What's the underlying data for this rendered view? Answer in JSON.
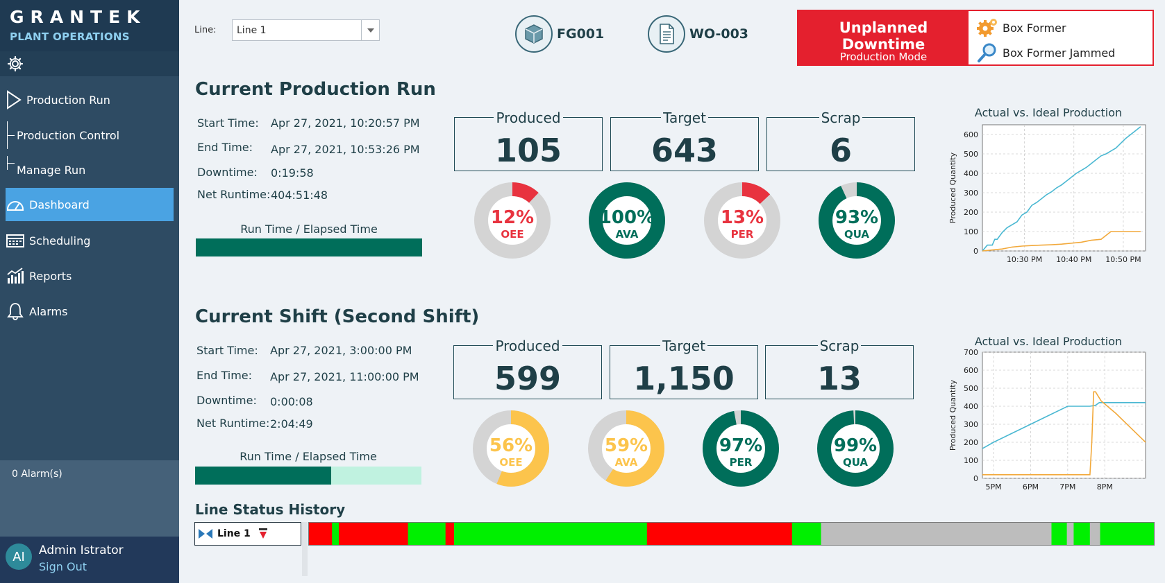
{
  "app": {
    "brand": "GRANTEK",
    "subtitle": "PLANT OPERATIONS"
  },
  "sidebar": {
    "items": [
      {
        "label": "Production Run",
        "icon": "play-icon"
      },
      {
        "label": "Production Control",
        "icon": ""
      },
      {
        "label": "Manage Run",
        "icon": ""
      },
      {
        "label": "Dashboard",
        "icon": "gauge-icon"
      },
      {
        "label": "Scheduling",
        "icon": "calendar-icon"
      },
      {
        "label": "Reports",
        "icon": "chart-icon"
      },
      {
        "label": "Alarms",
        "icon": "bell-icon"
      }
    ],
    "alarms": "0 Alarm(s)",
    "user": {
      "initials": "AI",
      "name": "Admin Istrator",
      "signout": "Sign Out"
    }
  },
  "header": {
    "line_label": "Line:",
    "line_value": "Line 1",
    "product": "FG001",
    "work_order": "WO-003",
    "status": {
      "title": "Unplanned Downtime",
      "mode": "Production Mode",
      "machine": "Box Former",
      "reason": "Box Former Jammed"
    }
  },
  "run": {
    "title": "Current Production Run",
    "labels": {
      "start": "Start Time:",
      "end": "End Time:",
      "downtime": "Downtime:",
      "net": "Net Runtime:"
    },
    "start": "Apr 27, 2021, 10:20:57 PM",
    "end": "Apr 27, 2021, 10:53:26 PM",
    "downtime": "0:19:58",
    "net": "404:51:48",
    "rt_label": "Run Time / Elapsed Time",
    "rt_fraction": 1.0,
    "boxes": [
      {
        "label": "Produced",
        "value": "105"
      },
      {
        "label": "Target",
        "value": "643"
      },
      {
        "label": "Scrap",
        "value": "6"
      }
    ],
    "kpis": [
      {
        "pct": "12%",
        "name": "OEE",
        "value": 12,
        "color": "#e8333f"
      },
      {
        "pct": "100%",
        "name": "AVA",
        "value": 100,
        "color": "#006e5a"
      },
      {
        "pct": "13%",
        "name": "PER",
        "value": 13,
        "color": "#e8333f"
      },
      {
        "pct": "93%",
        "name": "QUA",
        "value": 93,
        "color": "#006e5a"
      }
    ]
  },
  "shift": {
    "title": "Current Shift  (Second Shift)",
    "labels": {
      "start": "Start Time:",
      "end": "End Time:",
      "downtime": "Downtime:",
      "net": "Net Runtime:"
    },
    "start": "Apr 27, 2021, 3:00:00 PM",
    "end": "Apr 27, 2021, 11:00:00 PM",
    "downtime": "0:00:08",
    "net": "2:04:49",
    "rt_label": "Run Time / Elapsed Time",
    "rt_fraction": 0.6,
    "boxes": [
      {
        "label": "Produced",
        "value": "599"
      },
      {
        "label": "Target",
        "value": "1,150"
      },
      {
        "label": "Scrap",
        "value": "13"
      }
    ],
    "kpis": [
      {
        "pct": "56%",
        "name": "OEE",
        "value": 56,
        "color": "#fcc44c"
      },
      {
        "pct": "59%",
        "name": "AVA",
        "value": 59,
        "color": "#fcc44c"
      },
      {
        "pct": "97%",
        "name": "PER",
        "value": 97,
        "color": "#006e5a"
      },
      {
        "pct": "99%",
        "name": "QUA",
        "value": 99,
        "color": "#006e5a"
      }
    ]
  },
  "chart_data": [
    {
      "type": "line",
      "title": "Actual vs. Ideal Production",
      "ylabel": "Produced Quantity",
      "xlabel": "",
      "xlim": [
        0,
        33
      ],
      "ylim": [
        0,
        650
      ],
      "yticks": [
        0,
        100,
        200,
        300,
        400,
        500,
        600
      ],
      "xticks": [
        {
          "x": 8.5,
          "label": "10:30 PM"
        },
        {
          "x": 18.5,
          "label": "10:40 PM"
        },
        {
          "x": 28.5,
          "label": "10:50 PM"
        }
      ],
      "series": [
        {
          "color": "#4ab8d2",
          "x": [
            0,
            1,
            2,
            2.5,
            3,
            4,
            5,
            6,
            7,
            8,
            9,
            10,
            11,
            12,
            13,
            14,
            15,
            16,
            17,
            18,
            19,
            20,
            21,
            22,
            23,
            24,
            25,
            26,
            27,
            28,
            29,
            30,
            31,
            32
          ],
          "y": [
            0,
            30,
            30,
            60,
            60,
            95,
            120,
            135,
            150,
            185,
            200,
            235,
            250,
            270,
            290,
            305,
            325,
            340,
            360,
            380,
            400,
            415,
            430,
            450,
            470,
            490,
            500,
            515,
            530,
            555,
            580,
            600,
            620,
            640
          ]
        },
        {
          "color": "#f2a93b",
          "x": [
            0,
            2,
            4,
            6,
            8,
            10,
            12,
            14,
            16,
            18,
            20,
            22,
            24,
            25,
            26,
            28,
            30,
            32
          ],
          "y": [
            0,
            5,
            10,
            20,
            25,
            28,
            30,
            32,
            35,
            40,
            45,
            55,
            60,
            80,
            100,
            100,
            100,
            100
          ]
        }
      ]
    },
    {
      "type": "line",
      "title": "Actual vs. Ideal Production",
      "ylabel": "Produced Quantity",
      "xlabel": "",
      "xlim": [
        16.7,
        21.1
      ],
      "ylim": [
        0,
        700
      ],
      "yticks": [
        0,
        100,
        200,
        300,
        400,
        500,
        600,
        700
      ],
      "xticks": [
        {
          "x": 17,
          "label": "5PM"
        },
        {
          "x": 18,
          "label": "6PM"
        },
        {
          "x": 19,
          "label": "7PM"
        },
        {
          "x": 20,
          "label": "8PM"
        }
      ],
      "series": [
        {
          "color": "#4ab8d2",
          "x": [
            16.7,
            17,
            17.5,
            18,
            18.5,
            19,
            19.6,
            19.75,
            19.85,
            20.0,
            20.5,
            21.0,
            21.1
          ],
          "y": [
            165,
            200,
            250,
            300,
            350,
            400,
            400,
            405,
            420,
            420,
            420,
            420,
            420
          ]
        },
        {
          "color": "#f2a93b",
          "x": [
            16.7,
            17,
            18,
            19,
            19.5,
            19.6,
            19.65,
            19.7,
            19.75,
            19.9,
            20.3,
            20.7,
            21.1
          ],
          "y": [
            20,
            20,
            20,
            20,
            20,
            20,
            200,
            480,
            480,
            430,
            360,
            280,
            200
          ]
        }
      ]
    }
  ],
  "line_status": {
    "title": "Line Status History",
    "line_label": "Line 1",
    "colors": {
      "down": "#ff0000",
      "running": "#00f000",
      "idle": "#bdbdbd",
      "marker": "#b04040"
    },
    "segments": [
      {
        "state": "down",
        "w": 2.7
      },
      {
        "state": "running",
        "w": 0.8
      },
      {
        "state": "down",
        "w": 8.1
      },
      {
        "state": "running",
        "w": 4.4
      },
      {
        "state": "down",
        "w": 1.0
      },
      {
        "state": "running",
        "w": 14.6
      },
      {
        "state": "running",
        "w": 8.0
      },
      {
        "state": "down",
        "w": 17.0
      },
      {
        "state": "running",
        "w": 3.4
      },
      {
        "state": "idle",
        "w": 27.0
      },
      {
        "state": "running",
        "w": 1.8
      },
      {
        "state": "idle",
        "w": 0.8
      },
      {
        "state": "running",
        "w": 1.9
      },
      {
        "state": "idle",
        "w": 1.2
      },
      {
        "state": "running",
        "w": 6.3
      }
    ]
  }
}
